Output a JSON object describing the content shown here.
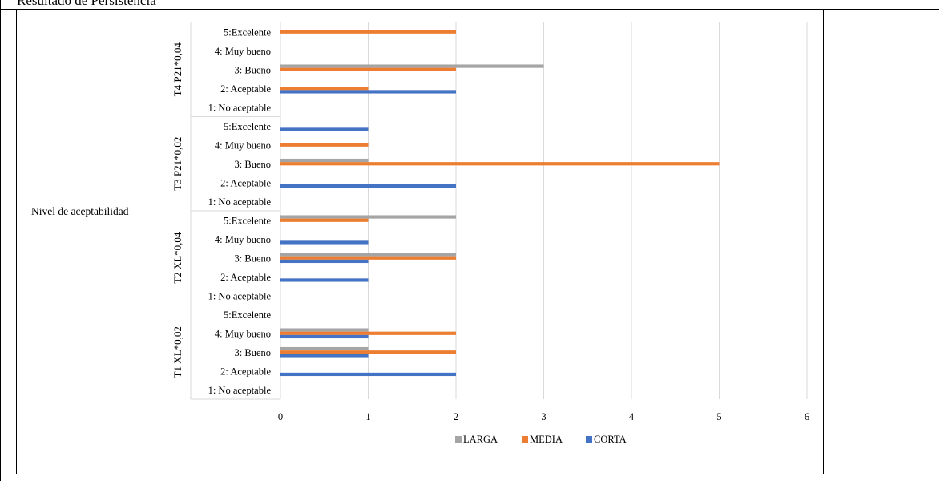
{
  "header": {
    "title": "Resultado de Persistencia"
  },
  "chart_data": {
    "type": "bar",
    "orientation": "horizontal",
    "title": "",
    "outer_axis_label": "Nivel de aceptabilidad",
    "groups": [
      {
        "label": "T4 P21*0,04",
        "categories": [
          "5:Excelente",
          "4: Muy bueno",
          "3: Bueno",
          "2: Aceptable",
          "1: No aceptable"
        ]
      },
      {
        "label": "T3 P21*0,02",
        "categories": [
          "5:Excelente",
          "4: Muy bueno",
          "3: Bueno",
          "2: Aceptable",
          "1: No aceptable"
        ]
      },
      {
        "label": "T2 XL*0,04",
        "categories": [
          "5:Excelente",
          "4: Muy bueno",
          "3: Bueno",
          "2: Aceptable",
          "1: No aceptable"
        ]
      },
      {
        "label": "T1 XL*0,02",
        "categories": [
          "5:Excelente",
          "4: Muy bueno",
          "3: Bueno",
          "2: Aceptable",
          "1: No aceptable"
        ]
      }
    ],
    "series": [
      {
        "name": "LARGA",
        "color": "#a5a5a5",
        "values": [
          [
            0,
            0,
            3,
            0,
            0
          ],
          [
            0,
            0,
            1,
            0,
            0
          ],
          [
            2,
            0,
            2,
            0,
            0
          ],
          [
            0,
            1,
            1,
            0,
            0
          ]
        ]
      },
      {
        "name": "MEDIA",
        "color": "#ed7d31",
        "values": [
          [
            2,
            0,
            2,
            1,
            0
          ],
          [
            0,
            1,
            5,
            0,
            0
          ],
          [
            1,
            0,
            2,
            0,
            0
          ],
          [
            0,
            2,
            2,
            0,
            0
          ]
        ]
      },
      {
        "name": "CORTA",
        "color": "#4472c4",
        "values": [
          [
            0,
            0,
            0,
            2,
            0
          ],
          [
            1,
            0,
            0,
            2,
            0
          ],
          [
            0,
            1,
            1,
            1,
            0
          ],
          [
            0,
            1,
            1,
            2,
            0
          ]
        ]
      }
    ],
    "xlim": [
      0,
      6
    ],
    "xticks": [
      "0",
      "1",
      "2",
      "3",
      "4",
      "5",
      "6"
    ],
    "grid": true,
    "legend": {
      "position": "bottom",
      "entries": [
        "LARGA",
        "MEDIA",
        "CORTA"
      ]
    }
  }
}
